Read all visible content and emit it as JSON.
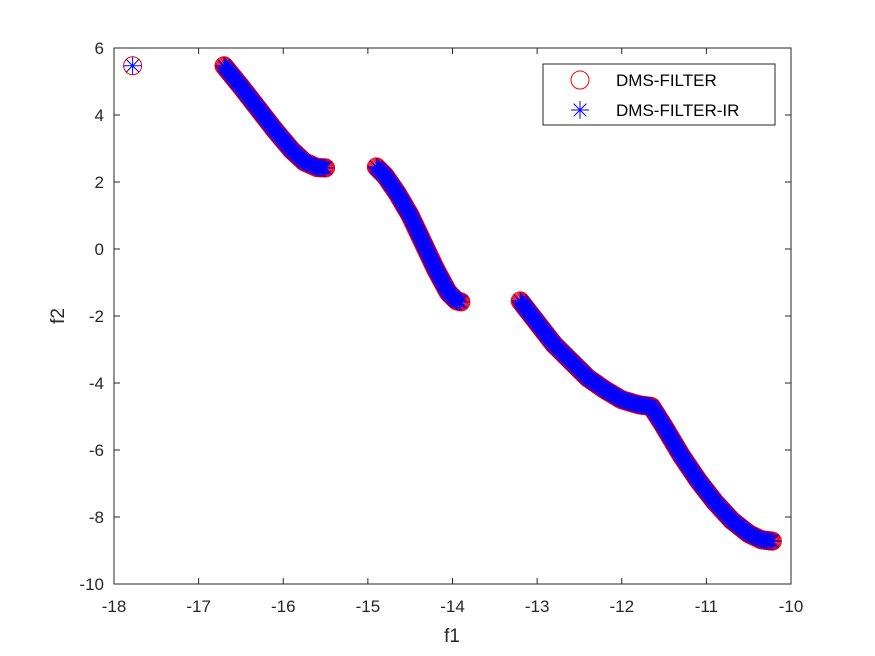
{
  "chart_data": {
    "type": "scatter",
    "title": "",
    "xlabel": "f1",
    "ylabel": "f2",
    "xlim": [
      -18,
      -10
    ],
    "ylim": [
      -10,
      6
    ],
    "xticks": [
      "-18",
      "-17",
      "-16",
      "-15",
      "-14",
      "-13",
      "-12",
      "-11",
      "-10"
    ],
    "yticks": [
      "-10",
      "-8",
      "-6",
      "-4",
      "-2",
      "0",
      "2",
      "4",
      "6"
    ],
    "grid": false,
    "legend_position": "top-right",
    "series": [
      {
        "name": "DMS-FILTER",
        "marker": "circle",
        "color": "#ff0000",
        "segments": [
          [
            [
              -17.78,
              5.47
            ]
          ],
          [
            [
              -16.7,
              5.47
            ],
            [
              -16.5,
              4.85
            ],
            [
              -16.3,
              4.2
            ],
            [
              -16.1,
              3.55
            ],
            [
              -15.9,
              2.95
            ],
            [
              -15.75,
              2.6
            ],
            [
              -15.6,
              2.43
            ],
            [
              -15.5,
              2.42
            ]
          ],
          [
            [
              -14.9,
              2.45
            ],
            [
              -14.8,
              2.2
            ],
            [
              -14.65,
              1.65
            ],
            [
              -14.5,
              1.0
            ],
            [
              -14.35,
              0.2
            ],
            [
              -14.2,
              -0.6
            ],
            [
              -14.05,
              -1.3
            ],
            [
              -13.95,
              -1.55
            ],
            [
              -13.9,
              -1.58
            ]
          ],
          [
            [
              -13.2,
              -1.55
            ],
            [
              -13.0,
              -2.2
            ],
            [
              -12.8,
              -2.85
            ],
            [
              -12.6,
              -3.35
            ],
            [
              -12.4,
              -3.85
            ],
            [
              -12.2,
              -4.2
            ],
            [
              -12.0,
              -4.5
            ],
            [
              -11.8,
              -4.65
            ],
            [
              -11.65,
              -4.7
            ],
            [
              -11.5,
              -5.3
            ],
            [
              -11.3,
              -6.15
            ],
            [
              -11.1,
              -6.9
            ],
            [
              -10.9,
              -7.55
            ],
            [
              -10.7,
              -8.1
            ],
            [
              -10.5,
              -8.5
            ],
            [
              -10.35,
              -8.68
            ],
            [
              -10.22,
              -8.72
            ]
          ]
        ]
      },
      {
        "name": "DMS-FILTER-IR",
        "marker": "asterisk",
        "color": "#0000ff",
        "segments": [
          [
            [
              -17.78,
              5.47
            ]
          ],
          [
            [
              -16.7,
              5.47
            ],
            [
              -16.5,
              4.85
            ],
            [
              -16.3,
              4.2
            ],
            [
              -16.1,
              3.55
            ],
            [
              -15.9,
              2.95
            ],
            [
              -15.75,
              2.6
            ],
            [
              -15.6,
              2.43
            ],
            [
              -15.5,
              2.42
            ]
          ],
          [
            [
              -14.9,
              2.45
            ],
            [
              -14.8,
              2.2
            ],
            [
              -14.65,
              1.65
            ],
            [
              -14.5,
              1.0
            ],
            [
              -14.35,
              0.2
            ],
            [
              -14.2,
              -0.6
            ],
            [
              -14.05,
              -1.3
            ],
            [
              -13.95,
              -1.55
            ],
            [
              -13.9,
              -1.58
            ]
          ],
          [
            [
              -13.2,
              -1.55
            ],
            [
              -13.0,
              -2.2
            ],
            [
              -12.8,
              -2.85
            ],
            [
              -12.6,
              -3.35
            ],
            [
              -12.4,
              -3.85
            ],
            [
              -12.2,
              -4.2
            ],
            [
              -12.0,
              -4.5
            ],
            [
              -11.8,
              -4.65
            ],
            [
              -11.65,
              -4.7
            ],
            [
              -11.5,
              -5.3
            ],
            [
              -11.3,
              -6.15
            ],
            [
              -11.1,
              -6.9
            ],
            [
              -10.9,
              -7.55
            ],
            [
              -10.7,
              -8.1
            ],
            [
              -10.5,
              -8.5
            ],
            [
              -10.35,
              -8.68
            ],
            [
              -10.22,
              -8.72
            ]
          ]
        ]
      }
    ]
  }
}
